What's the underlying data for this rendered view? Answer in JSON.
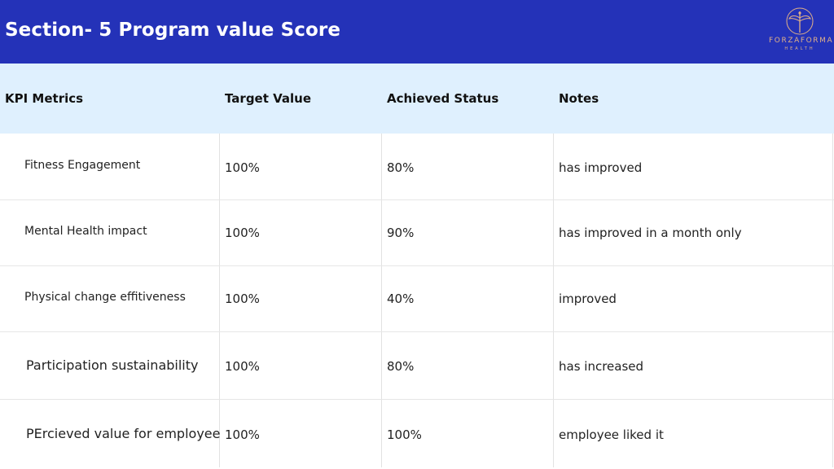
{
  "header": {
    "title": "Section- 5 Program value Score",
    "logo": {
      "name": "FORZAFORMA",
      "sub": "HEALTH",
      "color": "#e0b088"
    },
    "background": "#2432b8"
  },
  "table": {
    "columns": [
      "KPI Metrics",
      "Target Value",
      "Achieved Status",
      "Notes"
    ],
    "rows": [
      {
        "metric": "Fitness Engagement",
        "target": "100%",
        "achieved": "80%",
        "notes": "has improved"
      },
      {
        "metric": "Mental Health impact",
        "target": "100%",
        "achieved": "90%",
        "notes": "has improved in a month only"
      },
      {
        "metric": "Physical change effitiveness",
        "target": "100%",
        "achieved": "40%",
        "notes": "improved"
      },
      {
        "metric": "Participation sustainability",
        "target": "100%",
        "achieved": "80%",
        "notes": "has increased"
      },
      {
        "metric": "PErcieved value for employee",
        "target": "100%",
        "achieved": "100%",
        "notes": "employee liked it"
      }
    ],
    "header_background": "#dff0fe"
  }
}
